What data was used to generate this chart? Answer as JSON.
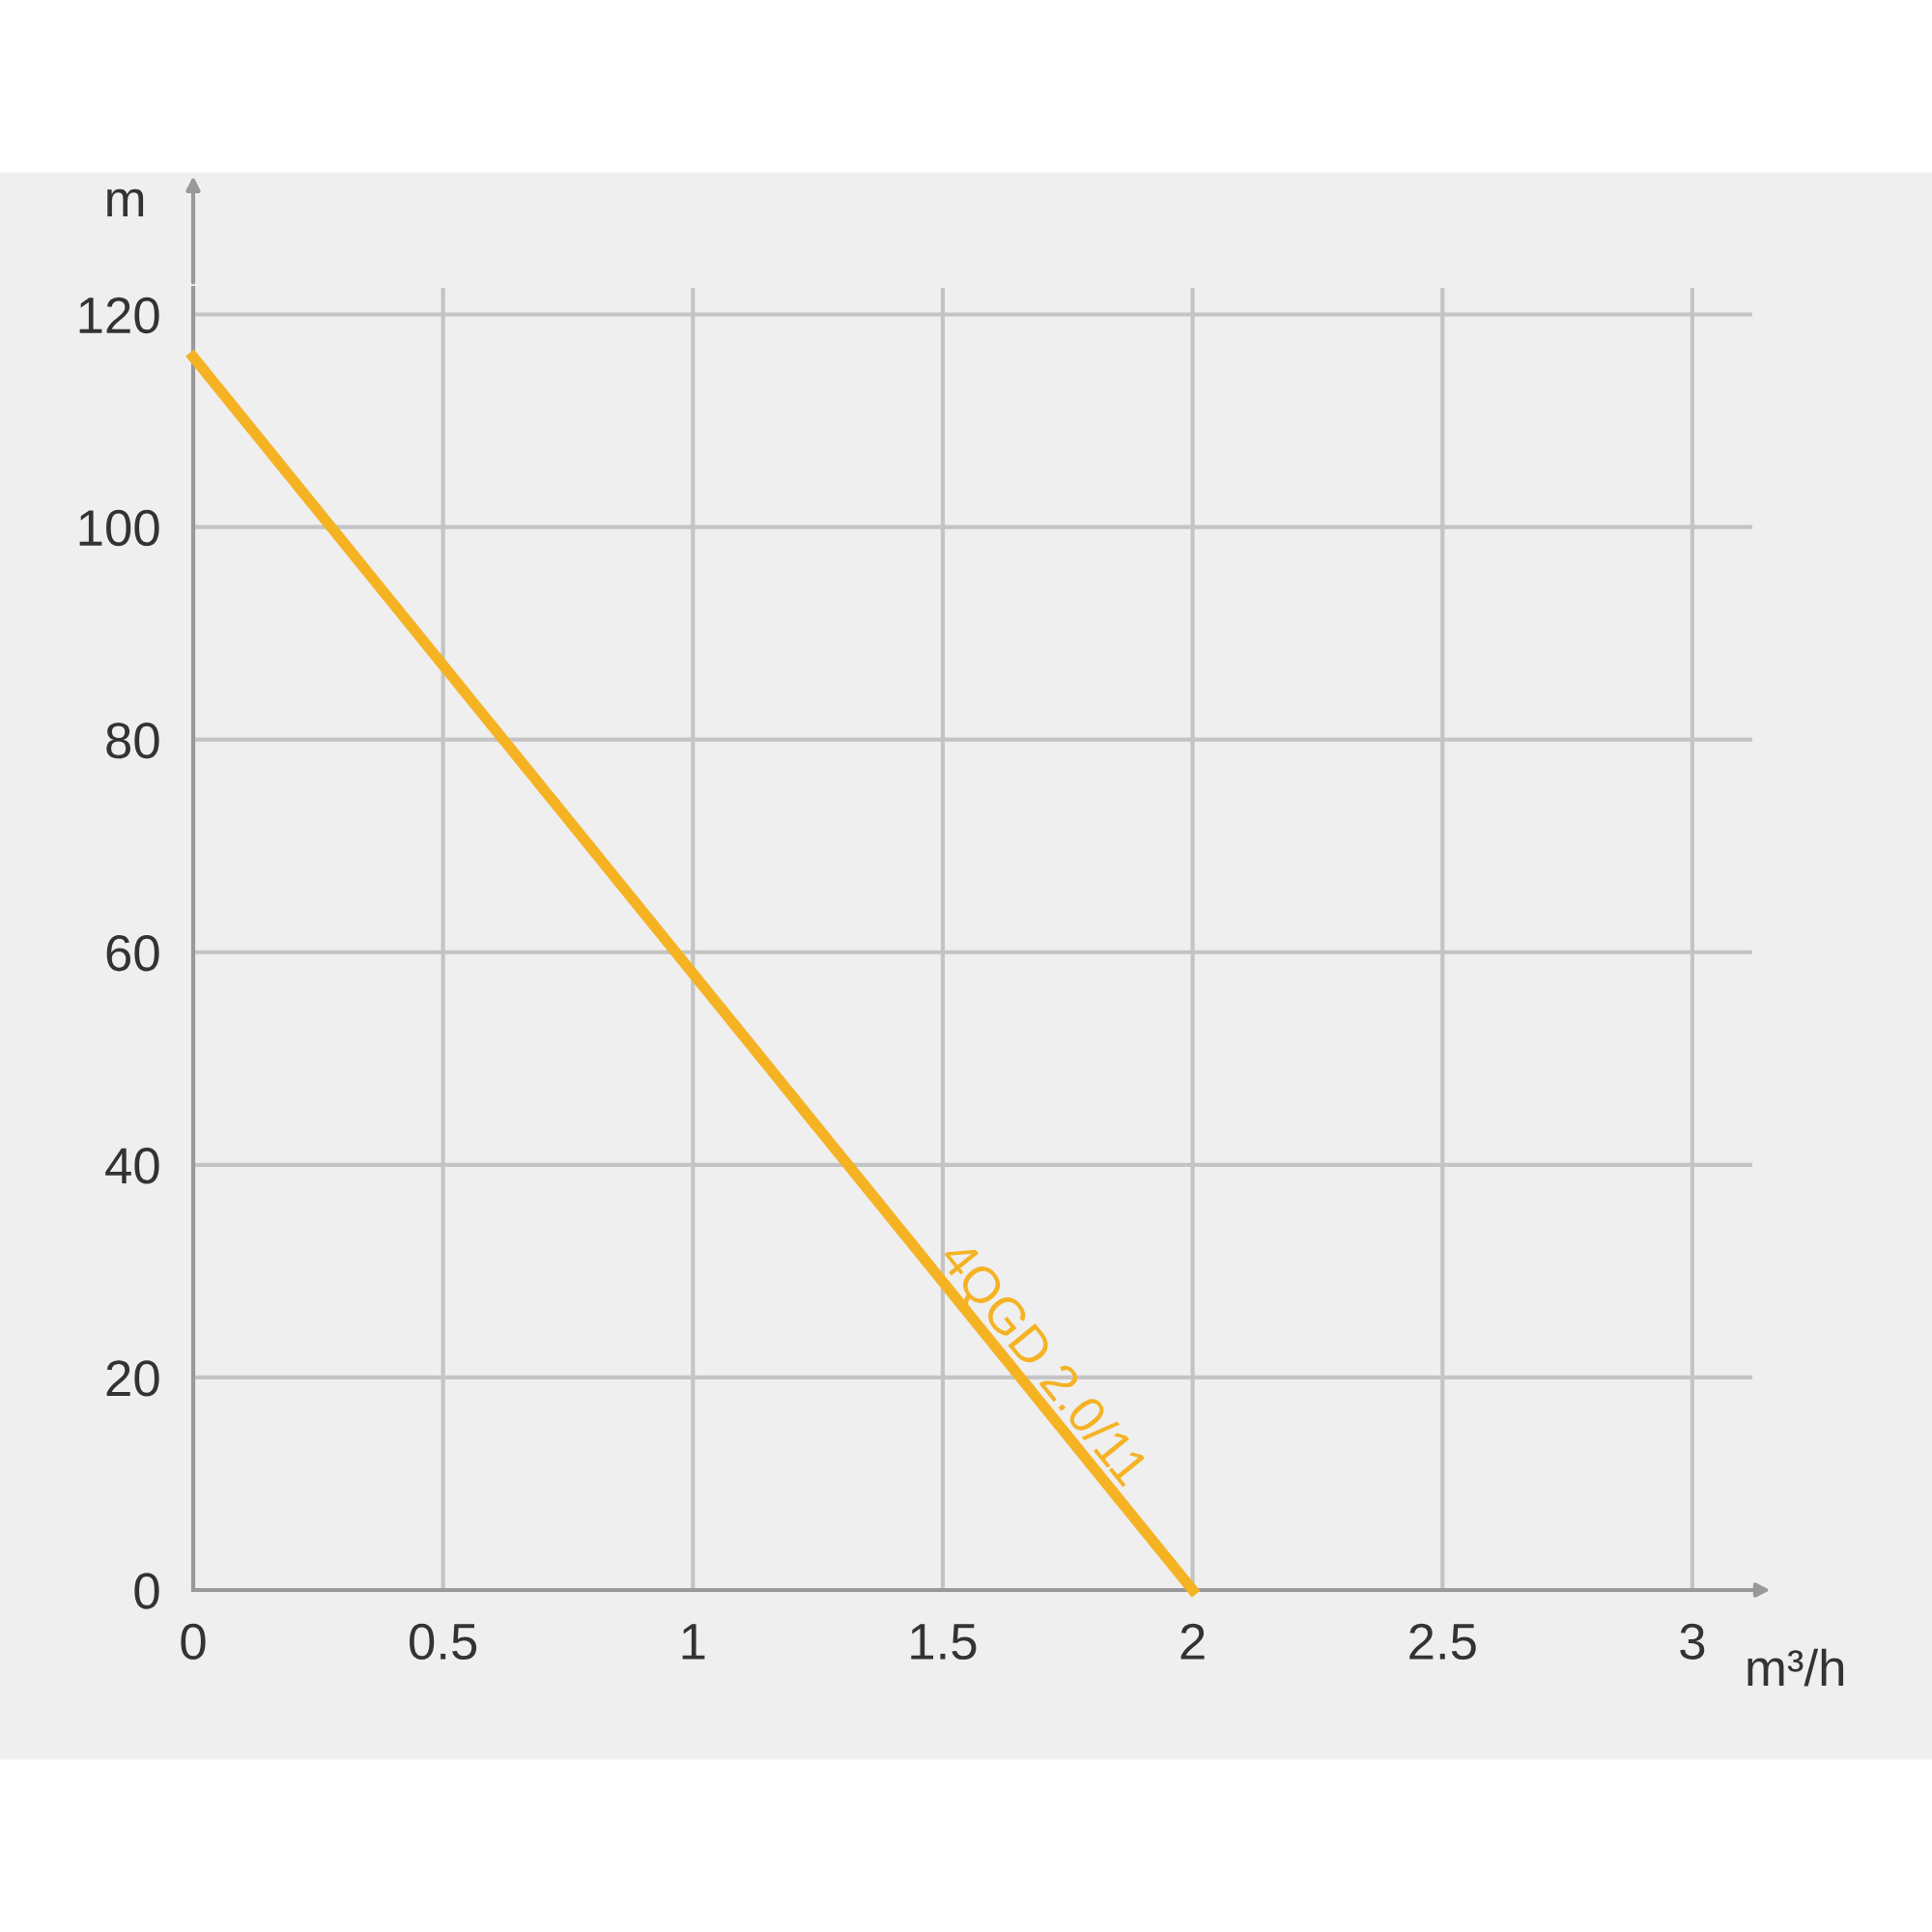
{
  "chart_data": {
    "type": "line",
    "xlabel": "m³/h",
    "ylabel": "m",
    "x": [
      0,
      2
    ],
    "series": [
      {
        "name": "4QGD 2.0/11",
        "color": "#f5b324",
        "values": [
          116,
          0
        ]
      }
    ],
    "xlim": [
      0,
      3.12
    ],
    "ylim": [
      0,
      122.5
    ],
    "xticks": [
      0,
      0.5,
      1,
      1.5,
      2,
      2.5,
      3
    ],
    "yticks": [
      0,
      20,
      40,
      60,
      80,
      100,
      120
    ],
    "grid": true,
    "marker": "none",
    "line_style": "solid"
  }
}
